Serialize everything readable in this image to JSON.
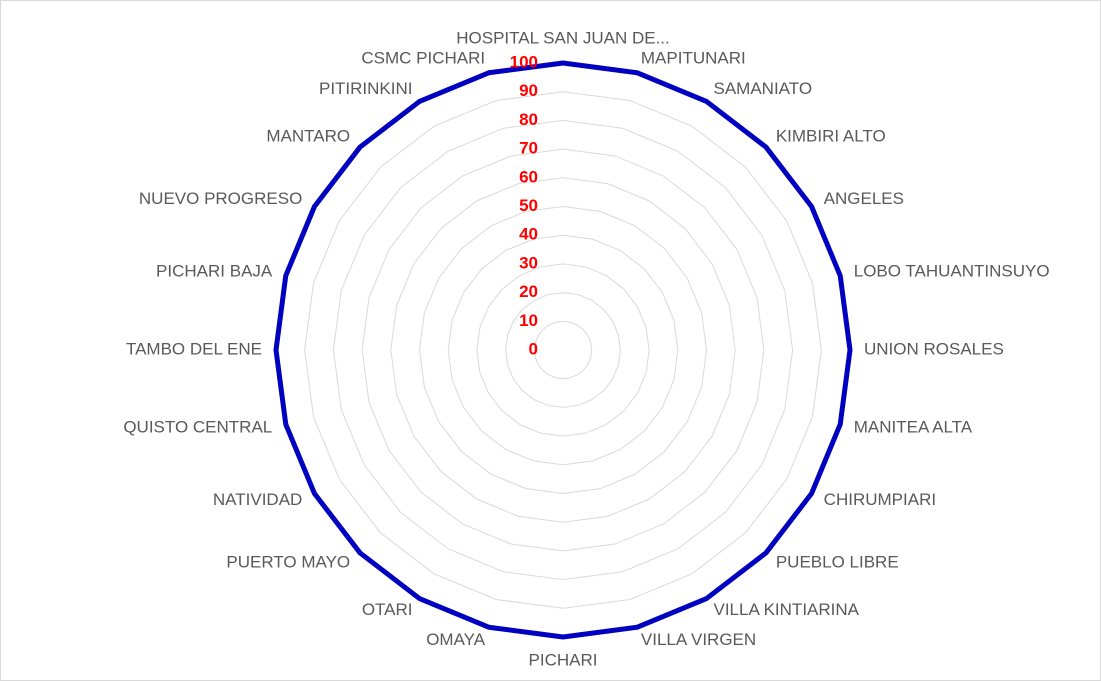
{
  "chart_data": {
    "type": "radar",
    "categories": [
      "HOSPITAL SAN JUAN DE...",
      "MAPITUNARI",
      "SAMANIATO",
      "KIMBIRI ALTO",
      "ANGELES",
      "LOBO TAHUANTINSUYO",
      "UNION ROSALES",
      "MANITEA ALTA",
      "CHIRUMPIARI",
      "PUEBLO LIBRE",
      "VILLA KINTIARINA",
      "VILLA VIRGEN",
      "PICHARI",
      "OMAYA",
      "OTARI",
      "PUERTO MAYO",
      "NATIVIDAD",
      "QUISTO CENTRAL",
      "TAMBO DEL ENE",
      "PICHARI BAJA",
      "NUEVO PROGRESO",
      "MANTARO",
      "PITIRINKINI",
      "CSMC PICHARI"
    ],
    "series": [
      {
        "color": "#0000c0",
        "values": [
          100,
          100,
          100,
          100,
          100,
          100,
          100,
          100,
          100,
          100,
          100,
          100,
          100,
          100,
          100,
          100,
          100,
          100,
          100,
          100,
          100,
          100,
          100,
          100
        ]
      }
    ],
    "ylim": [
      0,
      100
    ],
    "yticks": [
      0,
      10,
      20,
      30,
      40,
      50,
      60,
      70,
      80,
      90,
      100
    ],
    "grid": true
  }
}
